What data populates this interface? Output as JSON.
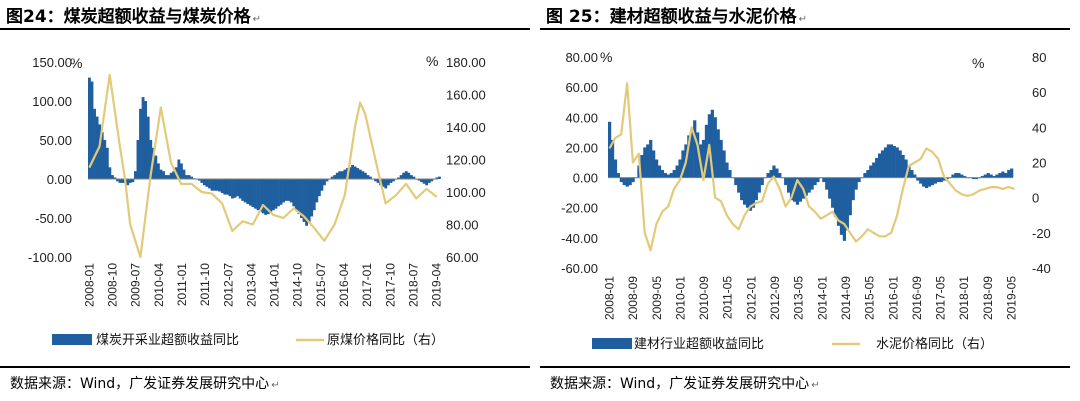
{
  "charts": [
    {
      "title": "图24：煤炭超额收益与煤炭价格",
      "source": "数据来源：Wind，广发证券发展研究中心"
    },
    {
      "title": "图 25：建材超额收益与水泥价格",
      "source": "数据来源：Wind，广发证券发展研究中心"
    }
  ],
  "colors": {
    "bar": "#1f5f9f",
    "line": "#e2ca7a",
    "zero": "#7f7f7f"
  },
  "chart_data": [
    {
      "type": "bar+line",
      "title": "图24：煤炭超额收益与煤炭价格",
      "left_unit": "%",
      "right_unit": "%",
      "left_ylim": [
        -100,
        150
      ],
      "right_ylim": [
        60,
        180
      ],
      "left_ticks": [
        "150.00",
        "100.00",
        "50.00",
        "0.00",
        "-50.00",
        "-100.00"
      ],
      "right_ticks": [
        "180.00",
        "160.00",
        "140.00",
        "120.00",
        "100.00",
        "80.00",
        "60.00"
      ],
      "x_ticks": [
        "2008-01",
        "2008-10",
        "2009-07",
        "2010-04",
        "2011-01",
        "2011-10",
        "2012-07",
        "2013-04",
        "2014-01",
        "2014-10",
        "2015-07",
        "2016-04",
        "2017-01",
        "2017-10",
        "2018-07",
        "2019-04"
      ],
      "x_start": "2008-01",
      "x_months": 137,
      "grid": false,
      "legend_position": "bottom",
      "series": [
        {
          "name": "煤炭开采业超额收益同比",
          "kind": "bar",
          "axis": "left",
          "values": [
            130,
            125,
            90,
            80,
            70,
            60,
            50,
            40,
            15,
            5,
            2,
            -3,
            -5,
            -5,
            -5,
            -8,
            -5,
            -4,
            10,
            50,
            90,
            105,
            100,
            80,
            50,
            40,
            30,
            20,
            12,
            10,
            5,
            5,
            8,
            10,
            15,
            25,
            20,
            12,
            5,
            5,
            3,
            1,
            0,
            -2,
            -5,
            -8,
            -10,
            -12,
            -15,
            -15,
            -15,
            -16,
            -18,
            -20,
            -20,
            -22,
            -25,
            -24,
            -22,
            -25,
            -28,
            -30,
            -32,
            -34,
            -36,
            -38,
            -40,
            -42,
            -44,
            -46,
            -45,
            -42,
            -40,
            -38,
            -35,
            -33,
            -30,
            -28,
            -28,
            -30,
            -35,
            -40,
            -45,
            -50,
            -55,
            -60,
            -55,
            -48,
            -40,
            -30,
            -22,
            -15,
            -8,
            -3,
            0,
            3,
            5,
            8,
            10,
            10,
            12,
            14,
            15,
            18,
            16,
            14,
            12,
            10,
            8,
            5,
            3,
            0,
            -3,
            -5,
            -8,
            -10,
            -12,
            -8,
            -5,
            -3,
            0,
            2,
            5,
            8,
            10,
            8,
            5,
            3,
            0,
            -2,
            -4,
            -6,
            -8,
            -5,
            -3,
            0,
            2,
            3
          ]
        },
        {
          "name": "原煤价格同比（右）",
          "kind": "line",
          "axis": "right",
          "x_months": [
            0,
            4,
            8,
            12,
            14,
            16,
            20,
            24,
            28,
            32,
            36,
            40,
            44,
            48,
            52,
            56,
            60,
            64,
            68,
            72,
            76,
            80,
            84,
            88,
            92,
            96,
            100,
            104,
            106,
            108,
            112,
            116,
            120,
            124,
            128,
            132,
            136
          ],
          "values": [
            115,
            128,
            172,
            128,
            108,
            80,
            60,
            110,
            152,
            118,
            105,
            105,
            100,
            99,
            93,
            76,
            82,
            80,
            92,
            86,
            84,
            90,
            85,
            78,
            70,
            80,
            98,
            140,
            155,
            148,
            120,
            93,
            98,
            105,
            96,
            102,
            97
          ]
        }
      ]
    },
    {
      "type": "bar+line",
      "title": "图 25：建材超额收益与水泥价格",
      "left_unit": "%",
      "right_unit": "%",
      "left_ylim": [
        -60,
        80
      ],
      "right_ylim": [
        -40,
        80
      ],
      "left_ticks": [
        "80.00",
        "60.00",
        "40.00",
        "20.00",
        "0.00",
        "-20.00",
        "-40.00",
        "-60.00"
      ],
      "right_ticks": [
        "80",
        "60",
        "40",
        "20",
        "0",
        "-20",
        "-40"
      ],
      "x_ticks": [
        "2008-01",
        "2008-09",
        "2009-05",
        "2010-01",
        "2010-09",
        "2011-05",
        "2012-01",
        "2012-09",
        "2013-05",
        "2014-01",
        "2014-09",
        "2015-05",
        "2016-01",
        "2016-09",
        "2017-05",
        "2018-01",
        "2018-09",
        "2019-05"
      ],
      "x_start": "2008-01",
      "x_months": 138,
      "grid": false,
      "legend_position": "bottom",
      "series": [
        {
          "name": "建材行业超额收益同比",
          "kind": "bar",
          "axis": "left",
          "values": [
            37,
            25,
            12,
            3,
            -3,
            -5,
            -6,
            -5,
            -3,
            0,
            8,
            15,
            20,
            22,
            25,
            18,
            12,
            8,
            5,
            3,
            2,
            3,
            5,
            8,
            12,
            18,
            22,
            28,
            32,
            38,
            30,
            22,
            25,
            35,
            42,
            45,
            40,
            32,
            25,
            18,
            10,
            5,
            0,
            -5,
            -10,
            -15,
            -18,
            -20,
            -22,
            -20,
            -15,
            -10,
            -5,
            0,
            3,
            5,
            8,
            6,
            3,
            0,
            -5,
            -10,
            -15,
            -16,
            -18,
            -16,
            -14,
            -12,
            -10,
            -8,
            -5,
            -3,
            0,
            -3,
            -8,
            -14,
            -20,
            -26,
            -32,
            -38,
            -42,
            -35,
            -25,
            -15,
            -8,
            -3,
            0,
            3,
            5,
            8,
            10,
            13,
            16,
            18,
            20,
            22,
            22,
            21,
            20,
            18,
            15,
            12,
            8,
            5,
            2,
            -2,
            -4,
            -6,
            -7,
            -6,
            -5,
            -4,
            -3,
            -3,
            -2,
            -1,
            0,
            2,
            3,
            3,
            2,
            1,
            0,
            0,
            -1,
            -1,
            0,
            1,
            2,
            3,
            2,
            1,
            2,
            3,
            4,
            3,
            5,
            6
          ]
        },
        {
          "name": "水泥价格同比（右）",
          "kind": "line",
          "axis": "right",
          "x_months": [
            0,
            2,
            4,
            6,
            8,
            10,
            12,
            14,
            16,
            18,
            20,
            22,
            24,
            26,
            28,
            30,
            32,
            34,
            36,
            38,
            40,
            42,
            44,
            46,
            48,
            50,
            52,
            54,
            56,
            58,
            60,
            62,
            64,
            66,
            68,
            70,
            72,
            74,
            76,
            78,
            80,
            82,
            84,
            86,
            88,
            90,
            92,
            94,
            96,
            98,
            100,
            102,
            104,
            106,
            108,
            110,
            112,
            114,
            116,
            118,
            120,
            122,
            124,
            126,
            128,
            130,
            132,
            134,
            136,
            138
          ],
          "values": [
            28,
            34,
            36,
            65,
            20,
            25,
            -20,
            -30,
            -15,
            -8,
            -5,
            5,
            10,
            20,
            40,
            30,
            10,
            30,
            0,
            -2,
            -10,
            -15,
            -18,
            -10,
            -5,
            -3,
            -2,
            8,
            12,
            5,
            -5,
            0,
            10,
            5,
            -5,
            -8,
            -12,
            -10,
            -8,
            -13,
            -15,
            -20,
            -25,
            -22,
            -18,
            -20,
            -22,
            -22,
            -20,
            -10,
            5,
            18,
            20,
            22,
            28,
            26,
            22,
            12,
            8,
            4,
            2,
            1,
            2,
            4,
            5,
            6,
            6,
            5,
            6,
            5
          ]
        }
      ]
    }
  ]
}
